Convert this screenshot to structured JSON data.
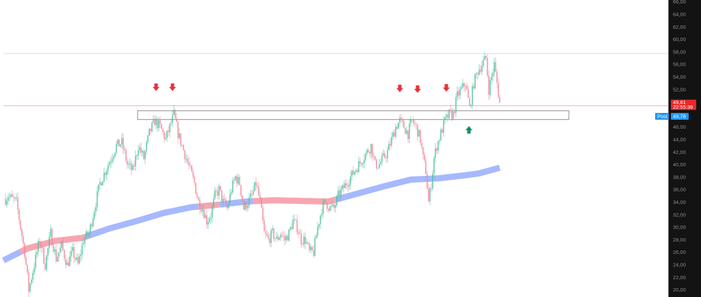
{
  "chart_data": {
    "type": "candlestick",
    "title": "",
    "xlabel": "",
    "ylabel": "",
    "ylim": [
      18,
      67
    ],
    "y_ticks": [
      "20,00",
      "22,00",
      "24,00",
      "26,00",
      "28,00",
      "30,00",
      "32,00",
      "34,00",
      "36,00",
      "38,00",
      "40,00",
      "42,00",
      "44,00",
      "46,00",
      "48,00",
      "50,00",
      "52,00",
      "54,00",
      "56,00",
      "58,00",
      "60,00",
      "62,00",
      "64,00",
      "66,00"
    ],
    "tick_values": [
      20,
      22,
      24,
      26,
      28,
      30,
      32,
      34,
      36,
      38,
      40,
      42,
      44,
      46,
      48,
      50,
      52,
      54,
      56,
      58,
      60,
      62,
      64,
      66
    ],
    "grid": false,
    "colors": {
      "up": "#4ec1a0",
      "down": "#f0879a",
      "ma_up": "#a6b9ff",
      "ma_down": "#f6a6b0",
      "arrow_down": "#e8323c",
      "arrow_up": "#0b8f6c",
      "price_tag": "#e82828",
      "post_tag": "#2196f3",
      "resistance_line": "#f4b2bf",
      "high_line": "#e0e0e0",
      "zone_border": "#9e9e9e"
    },
    "price_path": [
      [
        0,
        33.5
      ],
      [
        12,
        35
      ],
      [
        24,
        34
      ],
      [
        36,
        26
      ],
      [
        42,
        20
      ],
      [
        50,
        24
      ],
      [
        58,
        28
      ],
      [
        66,
        24
      ],
      [
        74,
        29
      ],
      [
        82,
        25
      ],
      [
        90,
        27
      ],
      [
        98,
        24
      ],
      [
        106,
        26
      ],
      [
        114,
        24
      ],
      [
        122,
        28
      ],
      [
        130,
        29
      ],
      [
        138,
        33
      ],
      [
        146,
        37
      ],
      [
        154,
        39
      ],
      [
        162,
        41
      ],
      [
        170,
        43
      ],
      [
        178,
        43.5
      ],
      [
        186,
        40
      ],
      [
        194,
        39
      ],
      [
        202,
        43
      ],
      [
        210,
        41
      ],
      [
        218,
        45
      ],
      [
        226,
        47
      ],
      [
        234,
        46
      ],
      [
        242,
        44
      ],
      [
        248,
        46
      ],
      [
        254,
        48
      ],
      [
        260,
        45
      ],
      [
        266,
        43
      ],
      [
        272,
        41
      ],
      [
        278,
        39
      ],
      [
        284,
        37
      ],
      [
        290,
        34
      ],
      [
        296,
        33
      ],
      [
        302,
        31
      ],
      [
        308,
        32
      ],
      [
        314,
        35
      ],
      [
        320,
        36
      ],
      [
        326,
        34
      ],
      [
        332,
        33
      ],
      [
        338,
        36
      ],
      [
        344,
        38
      ],
      [
        350,
        37
      ],
      [
        356,
        33
      ],
      [
        362,
        34
      ],
      [
        368,
        35
      ],
      [
        374,
        37
      ],
      [
        380,
        34
      ],
      [
        386,
        29
      ],
      [
        392,
        28
      ],
      [
        398,
        29
      ],
      [
        404,
        28
      ],
      [
        410,
        29
      ],
      [
        416,
        28
      ],
      [
        422,
        29
      ],
      [
        428,
        31
      ],
      [
        434,
        30
      ],
      [
        440,
        28
      ],
      [
        446,
        28
      ],
      [
        452,
        26
      ],
      [
        458,
        26
      ],
      [
        464,
        30
      ],
      [
        470,
        33
      ],
      [
        476,
        34
      ],
      [
        482,
        33
      ],
      [
        488,
        33
      ],
      [
        494,
        35
      ],
      [
        500,
        36
      ],
      [
        506,
        37
      ],
      [
        512,
        38
      ],
      [
        518,
        39
      ],
      [
        524,
        40
      ],
      [
        530,
        41
      ],
      [
        536,
        42
      ],
      [
        542,
        43
      ],
      [
        548,
        40
      ],
      [
        554,
        40
      ],
      [
        560,
        41
      ],
      [
        566,
        42
      ],
      [
        572,
        44
      ],
      [
        578,
        46
      ],
      [
        584,
        47
      ],
      [
        590,
        46
      ],
      [
        596,
        45
      ],
      [
        602,
        47
      ],
      [
        608,
        46
      ],
      [
        614,
        44
      ],
      [
        618,
        41
      ],
      [
        622,
        39
      ],
      [
        626,
        34
      ],
      [
        630,
        37
      ],
      [
        634,
        41
      ],
      [
        638,
        43
      ],
      [
        644,
        45
      ],
      [
        650,
        47
      ],
      [
        656,
        48
      ],
      [
        662,
        48
      ],
      [
        668,
        51
      ],
      [
        674,
        52
      ],
      [
        680,
        53
      ],
      [
        686,
        49
      ],
      [
        692,
        53
      ],
      [
        698,
        55
      ],
      [
        704,
        56
      ],
      [
        710,
        57
      ],
      [
        714,
        52
      ],
      [
        718,
        54
      ],
      [
        722,
        56
      ],
      [
        726,
        53
      ],
      [
        730,
        49.8
      ]
    ],
    "ma_path": [
      [
        5,
        24.7
      ],
      [
        40,
        26.6
      ],
      [
        80,
        27.8
      ],
      [
        120,
        28.3
      ],
      [
        160,
        29.8
      ],
      [
        200,
        31
      ],
      [
        240,
        32.3
      ],
      [
        280,
        33.2
      ],
      [
        320,
        33.6
      ],
      [
        360,
        34.1
      ],
      [
        400,
        34.3
      ],
      [
        440,
        34.2
      ],
      [
        480,
        34.1
      ],
      [
        520,
        35.3
      ],
      [
        560,
        36.5
      ],
      [
        600,
        37.6
      ],
      [
        640,
        37.8
      ],
      [
        680,
        38.3
      ],
      [
        700,
        38.6
      ],
      [
        730,
        39.5
      ]
    ],
    "ma_segments": [
      {
        "from": 5,
        "to": 30,
        "trend": "up"
      },
      {
        "from": 30,
        "to": 125,
        "trend": "down"
      },
      {
        "from": 125,
        "to": 290,
        "trend": "up"
      },
      {
        "from": 290,
        "to": 320,
        "trend": "down"
      },
      {
        "from": 320,
        "to": 370,
        "trend": "up"
      },
      {
        "from": 370,
        "to": 490,
        "trend": "down"
      },
      {
        "from": 490,
        "to": 730,
        "trend": "up"
      }
    ],
    "resistance_zone": [
      47.2,
      48.6
    ],
    "resistance_level": 49.4,
    "high_level": 57.7,
    "arrows": [
      {
        "x": 228,
        "dir": "down",
        "at": 52.3
      },
      {
        "x": 252,
        "dir": "down",
        "at": 52.3
      },
      {
        "x": 584,
        "dir": "down",
        "at": 52.1
      },
      {
        "x": 610,
        "dir": "down",
        "at": 52.0
      },
      {
        "x": 652,
        "dir": "down",
        "at": 52.2
      },
      {
        "x": 685,
        "dir": "up",
        "at": 45.6
      }
    ],
    "price_tag": {
      "price": "49,81",
      "time": "22:55:39",
      "value": 49.6
    },
    "post_tag": {
      "label": "Post",
      "price": "49,78",
      "value": 47.7
    }
  }
}
